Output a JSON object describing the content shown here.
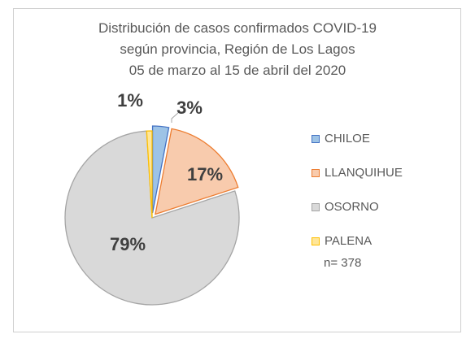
{
  "chart_data": {
    "type": "pie",
    "title_lines": [
      "Distribución de casos confirmados COVID-19",
      "según provincia, Región de Los Lagos",
      "05 de marzo al 15 de abril del 2020"
    ],
    "slices": [
      {
        "name": "CHILOE",
        "percent": 3,
        "label": "3%",
        "color": "#9DC3E6",
        "border": "#4472C4"
      },
      {
        "name": "LLANQUIHUE",
        "percent": 17,
        "label": "17%",
        "color": "#F8CBAD",
        "border": "#ED7D31"
      },
      {
        "name": "OSORNO",
        "percent": 79,
        "label": "79%",
        "color": "#D9D9D9",
        "border": "#A5A5A5"
      },
      {
        "name": "PALENA",
        "percent": 1,
        "label": "1%",
        "color": "#FFE699",
        "border": "#FFC000"
      }
    ],
    "exploded": [
      "CHILOE",
      "LLANQUIHUE"
    ],
    "legend_position": "right",
    "note": "n= 378"
  }
}
